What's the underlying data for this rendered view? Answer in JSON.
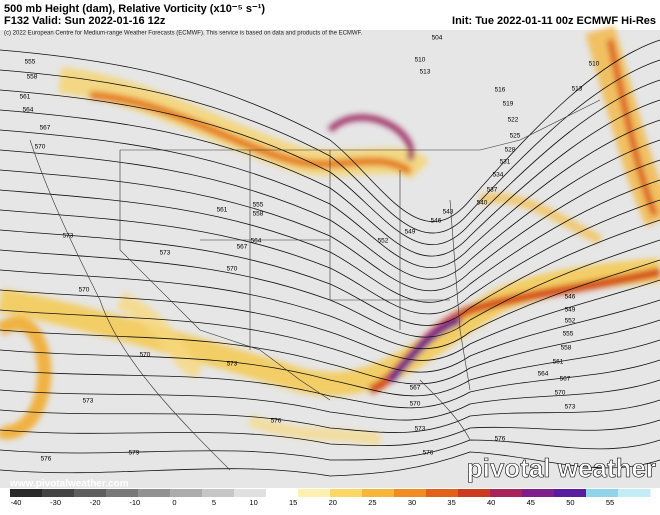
{
  "header": {
    "title": "500 mb Height (dam), Relative Vorticity (x10⁻⁵ s⁻¹)",
    "valid": "F132 Valid: Sun 2022-01-16 12z",
    "init": "Init: Tue 2022-01-11 00z ECMWF Hi-Res",
    "copyright": "(c) 2022 European Centre for Medium-range Weather Forecasts (ECMWF). This service is based on data and products of the ECMWF."
  },
  "footer": {
    "website": "www.pivotalweather.com",
    "logo": "pivotal weather"
  },
  "colorbar": {
    "labels": [
      "-40",
      "-30",
      "-20",
      "-10",
      "0",
      "5",
      "10",
      "15",
      "20",
      "25",
      "30",
      "35",
      "40",
      "45",
      "50",
      "55"
    ]
  },
  "contours": {
    "labels": [
      "504",
      "510",
      "513",
      "555",
      "558",
      "561",
      "564",
      "567",
      "570",
      "516",
      "519",
      "522",
      "525",
      "528",
      "531",
      "534",
      "537",
      "540",
      "543",
      "546",
      "549",
      "552",
      "555",
      "558",
      "561",
      "564",
      "567",
      "570",
      "573",
      "573",
      "570",
      "570",
      "573",
      "573",
      "576",
      "576",
      "579",
      "510",
      "513",
      "546",
      "549",
      "552",
      "555",
      "558",
      "561",
      "564",
      "567",
      "570",
      "573",
      "576",
      "570",
      "567",
      "573",
      "576"
    ]
  }
}
